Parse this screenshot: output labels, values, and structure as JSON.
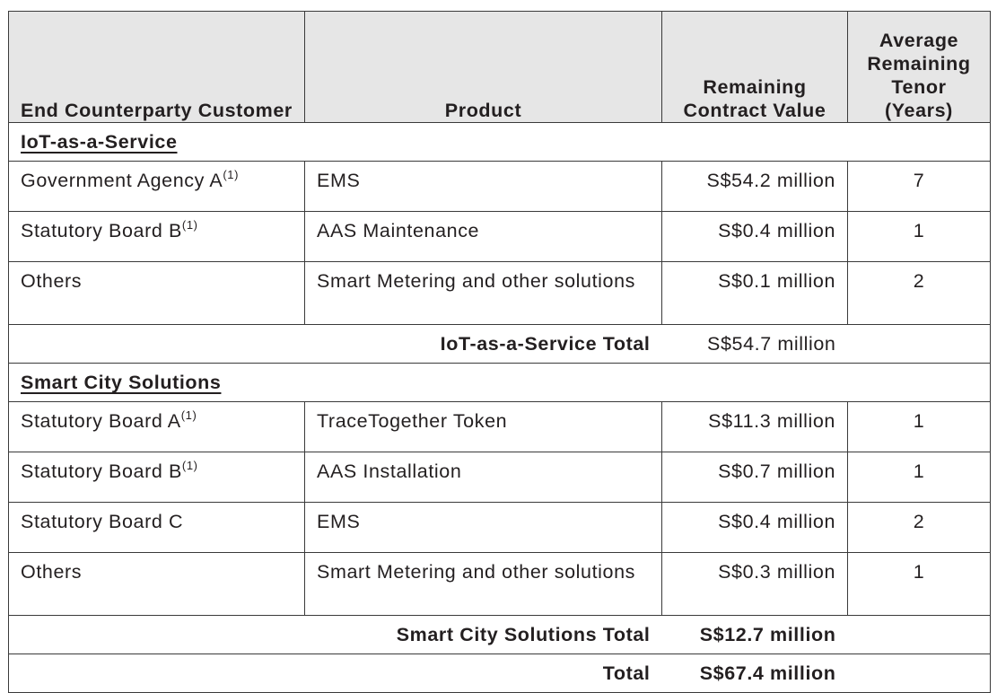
{
  "headers": {
    "customer": "End Counterparty Customer",
    "product": "Product",
    "value": "Remaining Contract Value",
    "tenor": "Average Remaining Tenor (Years)"
  },
  "sections": [
    {
      "title": "IoT-as-a-Service",
      "rows": [
        {
          "customer": "Government Agency A",
          "note": "(1)",
          "product": "EMS",
          "value": "S$54.2 million",
          "tenor": "7"
        },
        {
          "customer": "Statutory Board B",
          "note": "(1)",
          "product": "AAS Maintenance",
          "value": "S$0.4 million",
          "tenor": "1"
        },
        {
          "customer": "Others",
          "note": "",
          "product": "Smart Metering and other solutions",
          "value": "S$0.1 million",
          "tenor": "2"
        }
      ],
      "total_label": "IoT-as-a-Service Total",
      "total_value": "S$54.7 million"
    },
    {
      "title": "Smart City Solutions",
      "rows": [
        {
          "customer": "Statutory Board A",
          "note": "(1)",
          "product": "TraceTogether Token",
          "value": "S$11.3 million",
          "tenor": "1"
        },
        {
          "customer": "Statutory Board B",
          "note": "(1)",
          "product": "AAS Installation",
          "value": "S$0.7 million",
          "tenor": "1"
        },
        {
          "customer": "Statutory Board C",
          "note": "",
          "product": "EMS",
          "value": "S$0.4 million",
          "tenor": "2"
        },
        {
          "customer": "Others",
          "note": "",
          "product": "Smart Metering and other solutions",
          "value": "S$0.3 million",
          "tenor": "1"
        }
      ],
      "total_label": "Smart City Solutions Total",
      "total_value": "S$12.7 million"
    }
  ],
  "grand_total": {
    "label": "Total",
    "value": "S$67.4 million"
  }
}
